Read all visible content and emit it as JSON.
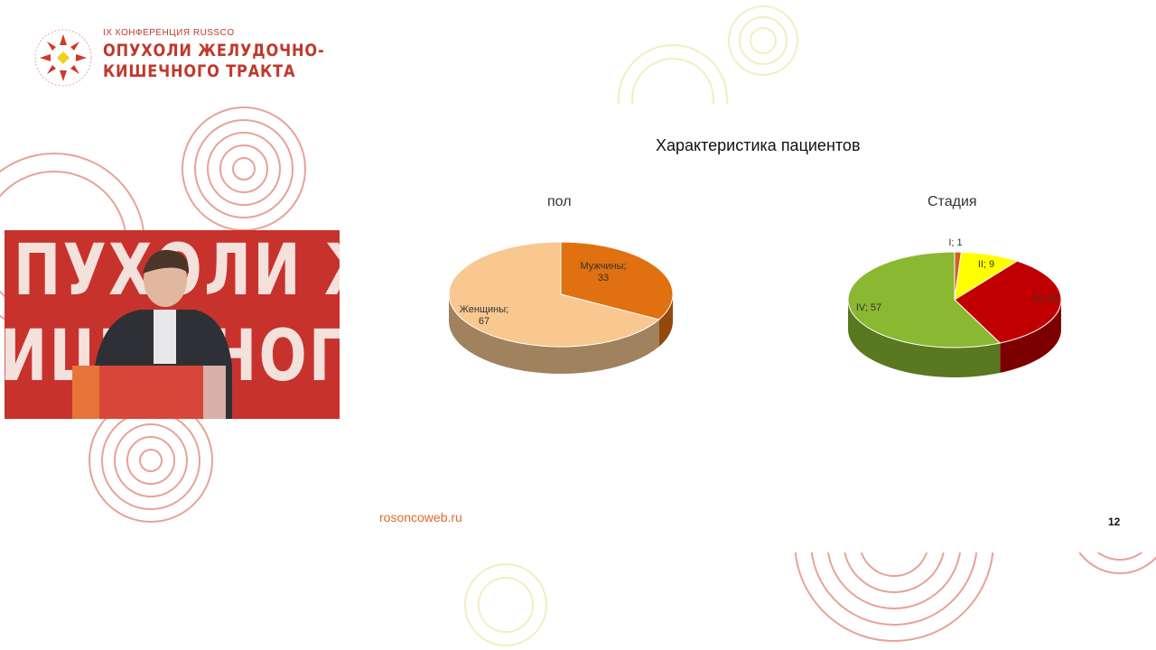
{
  "logo": {
    "subtitle": "IX КОНФЕРЕНЦИЯ RUSSCO",
    "title_line1": "ОПУХОЛИ ЖЕЛУДОЧНО-",
    "title_line2": "КИШЕЧНОГО ТРАКТА",
    "seal_text": "RUSSCO"
  },
  "video": {
    "backdrop_line1": "ПУХОЛИ Ж",
    "backdrop_line2": "ИШЕЧНОГО"
  },
  "slide": {
    "title": "Характеристика пациентов",
    "url": "rosoncoweb.ru",
    "page_number": "12"
  },
  "chart_data": [
    {
      "type": "pie",
      "title": "пол",
      "categories": [
        "Мужчины",
        "Женщины"
      ],
      "values": [
        33,
        67
      ],
      "colors": [
        "#e07010",
        "#f8c890"
      ],
      "labels": [
        "Мужчины; 33",
        "Женщины; 67"
      ]
    },
    {
      "type": "pie",
      "title": "Стадия",
      "categories": [
        "I",
        "II",
        "III",
        "IV"
      ],
      "values": [
        1,
        9,
        33,
        57
      ],
      "colors": [
        "#d06020",
        "#ffff00",
        "#c00000",
        "#8ab830"
      ],
      "labels": [
        "I; 1",
        "II; 9",
        "III; 33",
        "IV; 57"
      ]
    }
  ]
}
